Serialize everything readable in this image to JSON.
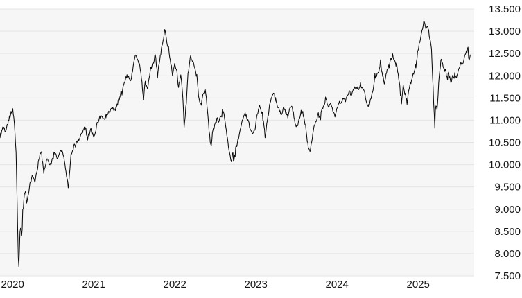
{
  "chart_data": {
    "type": "line",
    "grid": true,
    "legend": false,
    "y_axis": {
      "side": "right",
      "min": 7500,
      "max": 13500,
      "step": 500,
      "tick_labels": [
        "13.500",
        "13.000",
        "12.500",
        "12.000",
        "11.500",
        "11.000",
        "10.500",
        "10.000",
        "9.500",
        "9.000",
        "8.500",
        "8.000",
        "7.500"
      ],
      "tick_values": [
        13500,
        13000,
        12500,
        12000,
        11500,
        11000,
        10500,
        10000,
        9500,
        9000,
        8500,
        8000,
        7500
      ]
    },
    "x_axis": {
      "tick_labels": [
        "2020",
        "2021",
        "2022",
        "2023",
        "2024",
        "2025"
      ],
      "tick_values": [
        2020,
        2021,
        2022,
        2023,
        2024,
        2025
      ],
      "range": [
        2019.93,
        2025.73
      ]
    },
    "colors": {
      "line": "#0b0b0b",
      "plot_bg": "#f5f6f5",
      "grid": "#e3e5e3",
      "outer_bg": "#ffffff",
      "label": "#141414"
    },
    "series": [
      {
        "points": [
          [
            2019.93,
            10620
          ],
          [
            2019.97,
            10850
          ],
          [
            2020.0,
            10750
          ],
          [
            2020.04,
            11050
          ],
          [
            2020.07,
            11150
          ],
          [
            2020.09,
            11270
          ],
          [
            2020.11,
            10900
          ],
          [
            2020.13,
            10200
          ],
          [
            2020.14,
            9300
          ],
          [
            2020.15,
            8300
          ],
          [
            2020.16,
            7560
          ],
          [
            2020.18,
            8650
          ],
          [
            2020.2,
            8350
          ],
          [
            2020.21,
            9000
          ],
          [
            2020.24,
            9400
          ],
          [
            2020.26,
            9150
          ],
          [
            2020.3,
            9550
          ],
          [
            2020.33,
            9750
          ],
          [
            2020.36,
            9600
          ],
          [
            2020.4,
            10050
          ],
          [
            2020.44,
            10300
          ],
          [
            2020.47,
            9830
          ],
          [
            2020.51,
            10100
          ],
          [
            2020.55,
            10000
          ],
          [
            2020.6,
            10250
          ],
          [
            2020.64,
            10150
          ],
          [
            2020.68,
            10350
          ],
          [
            2020.72,
            10150
          ],
          [
            2020.77,
            9500
          ],
          [
            2020.81,
            10250
          ],
          [
            2020.85,
            10450
          ],
          [
            2020.9,
            10550
          ],
          [
            2020.94,
            10700
          ],
          [
            2020.98,
            10830
          ],
          [
            2021.01,
            10600
          ],
          [
            2021.05,
            10780
          ],
          [
            2021.09,
            10620
          ],
          [
            2021.13,
            10950
          ],
          [
            2021.18,
            11100
          ],
          [
            2021.22,
            11000
          ],
          [
            2021.26,
            11150
          ],
          [
            2021.31,
            11300
          ],
          [
            2021.35,
            11230
          ],
          [
            2021.39,
            11450
          ],
          [
            2021.43,
            11650
          ],
          [
            2021.48,
            11950
          ],
          [
            2021.52,
            12000
          ],
          [
            2021.54,
            11850
          ],
          [
            2021.58,
            12300
          ],
          [
            2021.6,
            12450
          ],
          [
            2021.63,
            12380
          ],
          [
            2021.66,
            12150
          ],
          [
            2021.68,
            11850
          ],
          [
            2021.7,
            11450
          ],
          [
            2021.72,
            11850
          ],
          [
            2021.75,
            11700
          ],
          [
            2021.78,
            12100
          ],
          [
            2021.82,
            12300
          ],
          [
            2021.85,
            12450
          ],
          [
            2021.87,
            11970
          ],
          [
            2021.9,
            12400
          ],
          [
            2021.93,
            12700
          ],
          [
            2021.96,
            13020
          ],
          [
            2021.98,
            12850
          ],
          [
            2022.01,
            12550
          ],
          [
            2022.03,
            12350
          ],
          [
            2022.06,
            12000
          ],
          [
            2022.08,
            12250
          ],
          [
            2022.11,
            12150
          ],
          [
            2022.13,
            11700
          ],
          [
            2022.16,
            12050
          ],
          [
            2022.19,
            11400
          ],
          [
            2022.2,
            10850
          ],
          [
            2022.23,
            11450
          ],
          [
            2022.25,
            12100
          ],
          [
            2022.28,
            12450
          ],
          [
            2022.31,
            12300
          ],
          [
            2022.33,
            12200
          ],
          [
            2022.36,
            11950
          ],
          [
            2022.38,
            11550
          ],
          [
            2022.41,
            11350
          ],
          [
            2022.43,
            11550
          ],
          [
            2022.46,
            11700
          ],
          [
            2022.49,
            11200
          ],
          [
            2022.51,
            10700
          ],
          [
            2022.53,
            10400
          ],
          [
            2022.55,
            10750
          ],
          [
            2022.58,
            10900
          ],
          [
            2022.61,
            11050
          ],
          [
            2022.63,
            10950
          ],
          [
            2022.66,
            11150
          ],
          [
            2022.68,
            11250
          ],
          [
            2022.71,
            10900
          ],
          [
            2022.73,
            10600
          ],
          [
            2022.76,
            10300
          ],
          [
            2022.78,
            10050
          ],
          [
            2022.8,
            10250
          ],
          [
            2022.82,
            10110
          ],
          [
            2022.84,
            10450
          ],
          [
            2022.87,
            10600
          ],
          [
            2022.9,
            10850
          ],
          [
            2022.92,
            11000
          ],
          [
            2022.95,
            11150
          ],
          [
            2022.97,
            11050
          ],
          [
            2023.0,
            10950
          ],
          [
            2023.02,
            10750
          ],
          [
            2023.05,
            10680
          ],
          [
            2023.08,
            10850
          ],
          [
            2023.1,
            11150
          ],
          [
            2023.13,
            11300
          ],
          [
            2023.15,
            11250
          ],
          [
            2023.18,
            10950
          ],
          [
            2023.2,
            10580
          ],
          [
            2023.22,
            10950
          ],
          [
            2023.25,
            11250
          ],
          [
            2023.27,
            11450
          ],
          [
            2023.3,
            11600
          ],
          [
            2023.32,
            11550
          ],
          [
            2023.35,
            11300
          ],
          [
            2023.37,
            11250
          ],
          [
            2023.4,
            11100
          ],
          [
            2023.43,
            11300
          ],
          [
            2023.45,
            11200
          ],
          [
            2023.48,
            11100
          ],
          [
            2023.5,
            11250
          ],
          [
            2023.53,
            11350
          ],
          [
            2023.55,
            11100
          ],
          [
            2023.58,
            10900
          ],
          [
            2023.6,
            10850
          ],
          [
            2023.63,
            11100
          ],
          [
            2023.66,
            11200
          ],
          [
            2023.68,
            11050
          ],
          [
            2023.71,
            10700
          ],
          [
            2023.73,
            10400
          ],
          [
            2023.75,
            10250
          ],
          [
            2023.78,
            10600
          ],
          [
            2023.8,
            10850
          ],
          [
            2023.83,
            11000
          ],
          [
            2023.85,
            11150
          ],
          [
            2023.88,
            11050
          ],
          [
            2023.9,
            11250
          ],
          [
            2023.93,
            11350
          ],
          [
            2023.95,
            11450
          ],
          [
            2023.98,
            11300
          ],
          [
            2024.01,
            11350
          ],
          [
            2024.03,
            11250
          ],
          [
            2024.06,
            11100
          ],
          [
            2024.08,
            11250
          ],
          [
            2024.11,
            11400
          ],
          [
            2024.13,
            11350
          ],
          [
            2024.16,
            11500
          ],
          [
            2024.19,
            11450
          ],
          [
            2024.21,
            11550
          ],
          [
            2024.24,
            11650
          ],
          [
            2024.26,
            11550
          ],
          [
            2024.29,
            11700
          ],
          [
            2024.31,
            11750
          ],
          [
            2024.34,
            11700
          ],
          [
            2024.37,
            11750
          ],
          [
            2024.39,
            11720
          ],
          [
            2024.42,
            11700
          ],
          [
            2024.44,
            11450
          ],
          [
            2024.47,
            11300
          ],
          [
            2024.49,
            11400
          ],
          [
            2024.52,
            11600
          ],
          [
            2024.54,
            11850
          ],
          [
            2024.57,
            12000
          ],
          [
            2024.6,
            12100
          ],
          [
            2024.62,
            12250
          ],
          [
            2024.65,
            12000
          ],
          [
            2024.67,
            11800
          ],
          [
            2024.7,
            12100
          ],
          [
            2024.72,
            12250
          ],
          [
            2024.75,
            12350
          ],
          [
            2024.77,
            12450
          ],
          [
            2024.8,
            12300
          ],
          [
            2024.83,
            12200
          ],
          [
            2024.85,
            11900
          ],
          [
            2024.88,
            11400
          ],
          [
            2024.9,
            11800
          ],
          [
            2024.93,
            11550
          ],
          [
            2024.95,
            11420
          ],
          [
            2024.98,
            11750
          ],
          [
            2025.01,
            11900
          ],
          [
            2025.03,
            12050
          ],
          [
            2025.06,
            12200
          ],
          [
            2025.08,
            12550
          ],
          [
            2025.11,
            12800
          ],
          [
            2025.13,
            13000
          ],
          [
            2025.16,
            13230
          ],
          [
            2025.18,
            13050
          ],
          [
            2025.2,
            13150
          ],
          [
            2025.22,
            12900
          ],
          [
            2025.24,
            12750
          ],
          [
            2025.25,
            12600
          ],
          [
            2025.27,
            11800
          ],
          [
            2025.29,
            10780
          ],
          [
            2025.3,
            11400
          ],
          [
            2025.32,
            11200
          ],
          [
            2025.34,
            11900
          ],
          [
            2025.36,
            12200
          ],
          [
            2025.37,
            12430
          ],
          [
            2025.39,
            12250
          ],
          [
            2025.41,
            12100
          ],
          [
            2025.42,
            12200
          ],
          [
            2025.44,
            11950
          ],
          [
            2025.46,
            12050
          ],
          [
            2025.48,
            11900
          ],
          [
            2025.49,
            11850
          ],
          [
            2025.51,
            12000
          ],
          [
            2025.53,
            11950
          ],
          [
            2025.54,
            12050
          ],
          [
            2025.56,
            11950
          ],
          [
            2025.58,
            12100
          ],
          [
            2025.6,
            12200
          ],
          [
            2025.61,
            12300
          ],
          [
            2025.63,
            12250
          ],
          [
            2025.65,
            12350
          ],
          [
            2025.66,
            12450
          ],
          [
            2025.68,
            12550
          ],
          [
            2025.7,
            12680
          ],
          [
            2025.71,
            12350
          ],
          [
            2025.73,
            12480
          ]
        ]
      }
    ]
  }
}
